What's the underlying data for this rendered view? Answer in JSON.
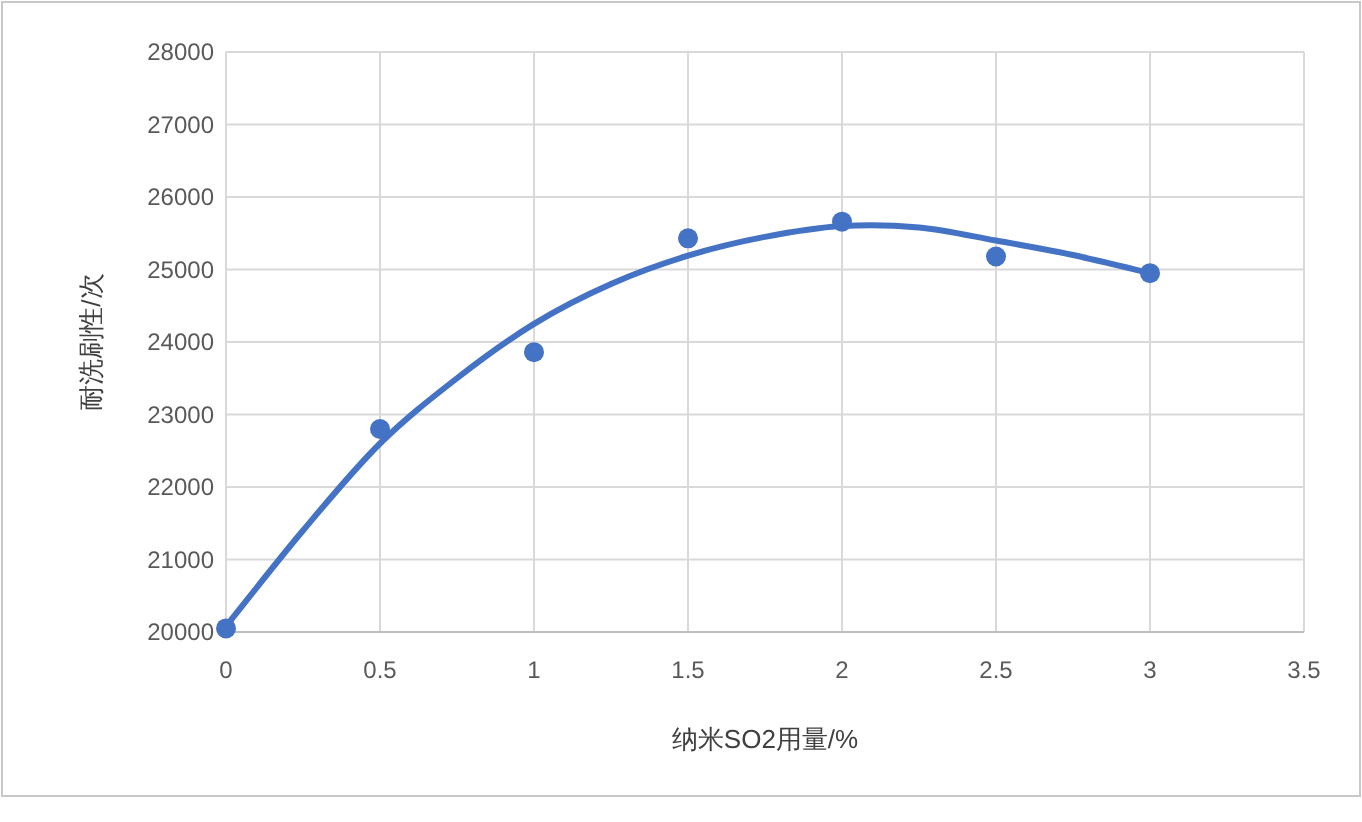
{
  "chart_data": {
    "type": "scatter",
    "xlabel": "纳米SO2用量/%",
    "ylabel": "耐洗刷性/次",
    "xlim": [
      0,
      3.5
    ],
    "xticks": [
      0,
      0.5,
      1,
      1.5,
      2,
      2.5,
      3,
      3.5
    ],
    "ylim": [
      20000,
      28000
    ],
    "yticks": [
      20000,
      21000,
      22000,
      23000,
      24000,
      25000,
      26000,
      27000,
      28000
    ],
    "grid": true,
    "series": [
      {
        "marker": "circle",
        "color": "#4472c4",
        "x": [
          0,
          0.5,
          1,
          1.5,
          2,
          2.5,
          3
        ],
        "values": [
          20050,
          22800,
          23860,
          25430,
          25660,
          25180,
          24950
        ]
      },
      {
        "type": "line",
        "marker": "none",
        "color": "#4472c4",
        "line_style": "solid",
        "x": [
          0,
          0.25,
          0.5,
          0.75,
          1,
          1.25,
          1.5,
          1.75,
          2,
          2.25,
          2.5,
          2.75,
          3
        ],
        "values": [
          20080,
          21400,
          22600,
          23500,
          24250,
          24800,
          25190,
          25450,
          25600,
          25580,
          25400,
          25200,
          24950
        ]
      }
    ]
  }
}
